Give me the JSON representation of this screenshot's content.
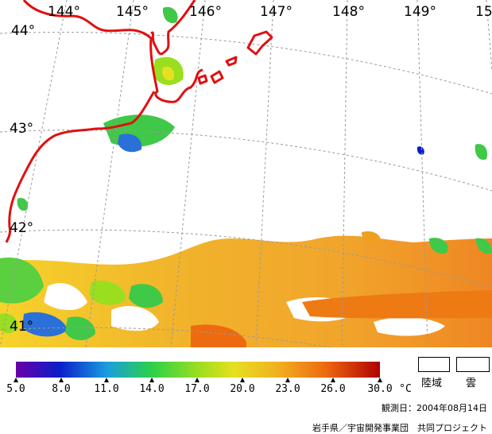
{
  "map": {
    "longitude_labels": [
      "144°",
      "145°",
      "146°",
      "147°",
      "148°",
      "149°",
      "15"
    ],
    "latitude_labels": [
      "44°",
      "43°",
      "42°",
      "41°"
    ],
    "coastline_color": "#e01010",
    "grid_color": "#9a9a9a"
  },
  "colorbar": {
    "tick_labels": [
      "5.0",
      "8.0",
      "11.0",
      "14.0",
      "17.0",
      "20.0",
      "23.0",
      "26.0",
      "30.0"
    ],
    "unit": "°C",
    "colors": [
      "#6a00a8",
      "#0a1ec8",
      "#1a9de0",
      "#2ad04a",
      "#9ade20",
      "#e6e020",
      "#f0b020",
      "#ee6a10",
      "#b00000"
    ]
  },
  "legend_boxes": {
    "land_label": "陸域",
    "cloud_label": "雲"
  },
  "footer": {
    "observation_date": "観測日：2004年08月14日",
    "credit": "岩手県／宇宙開発事業団　共同プロジェクト"
  }
}
